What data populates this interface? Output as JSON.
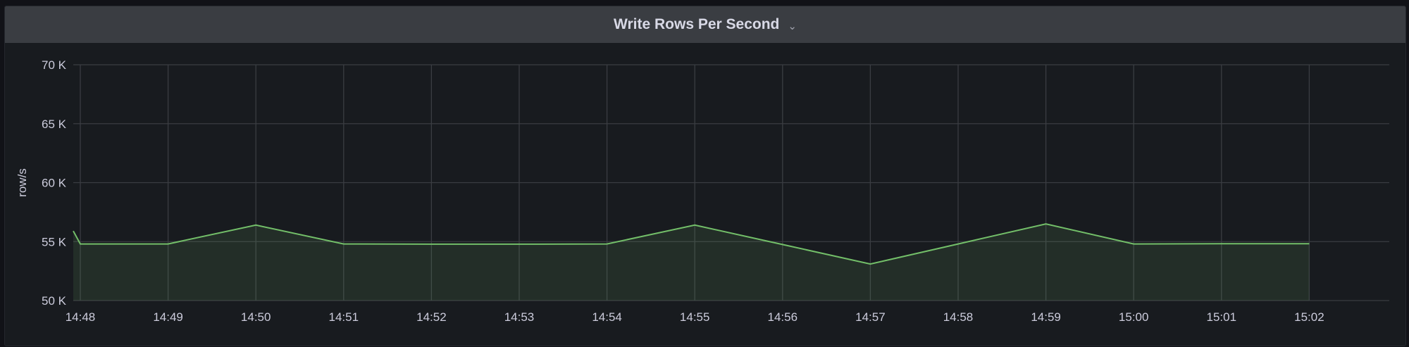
{
  "panel": {
    "title": "Write Rows Per Second",
    "menu_icon": "chevron-down-icon"
  },
  "chart_data": {
    "type": "area",
    "title": "Write Rows Per Second",
    "ylabel": "row/s",
    "xlabel": "",
    "ylim": [
      50000,
      70000
    ],
    "yticks": [
      "50 K",
      "55 K",
      "60 K",
      "65 K",
      "70 K"
    ],
    "ytick_values": [
      50000,
      55000,
      60000,
      65000,
      70000
    ],
    "xticks": [
      "14:48",
      "14:49",
      "14:50",
      "14:51",
      "14:52",
      "14:53",
      "14:54",
      "14:55",
      "14:56",
      "14:57",
      "14:58",
      "14:59",
      "15:00",
      "15:01",
      "15:02"
    ],
    "grid": true,
    "colors": {
      "line": "#73bf69",
      "fill": "rgba(115,191,105,0.12)",
      "grid": "#3a3d42",
      "background": "#181b1f"
    },
    "series": [
      {
        "x": [
          "14:47:55",
          "14:48",
          "14:49",
          "14:50",
          "14:51",
          "14:52",
          "14:53",
          "14:54",
          "14:55",
          "14:56",
          "14:57",
          "14:58",
          "14:59",
          "15:00",
          "15:01",
          "15:02"
        ],
        "values": [
          55900,
          54800,
          54800,
          56400,
          54800,
          54780,
          54780,
          54800,
          56400,
          54750,
          53100,
          54800,
          56500,
          54800,
          54820,
          54820
        ]
      }
    ]
  }
}
